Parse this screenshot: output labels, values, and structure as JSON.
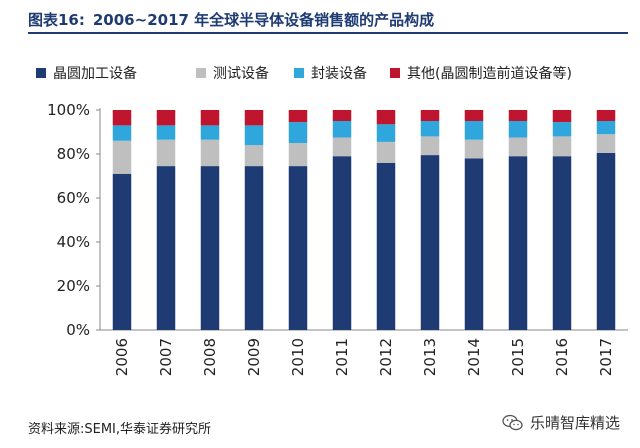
{
  "figure": {
    "label": "图表16:",
    "title": "2006~2017 年全球半导体设备销售额的产品构成",
    "source": "资料来源:SEMI,华泰证券研究所",
    "watermark": "乐晴智库精选"
  },
  "colors": {
    "wafer": "#1f3b73",
    "test": "#bfbfbf",
    "packaging": "#2fa7dd",
    "other": "#c0152f",
    "frame": "#1f3b73"
  },
  "chart_data": {
    "type": "bar",
    "stacked": true,
    "categories": [
      "2006",
      "2007",
      "2008",
      "2009",
      "2010",
      "2011",
      "2012",
      "2013",
      "2014",
      "2015",
      "2016",
      "2017"
    ],
    "series": [
      {
        "name": "晶圆加工设备",
        "color_key": "wafer",
        "values": [
          71,
          74.5,
          74.5,
          74.5,
          74.5,
          79,
          76,
          79.5,
          78,
          79,
          79,
          80.5
        ]
      },
      {
        "name": "测试设备",
        "color_key": "test",
        "values": [
          15,
          12,
          12,
          9.5,
          10.5,
          8.5,
          9.5,
          8.5,
          8.5,
          8.5,
          9,
          8.5
        ]
      },
      {
        "name": "封装设备",
        "color_key": "packaging",
        "values": [
          7,
          6.5,
          6.5,
          9,
          9.5,
          7.5,
          8,
          7,
          8.5,
          7.5,
          6.5,
          6
        ]
      },
      {
        "name": "其他(晶圆制造前道设备等)",
        "color_key": "other",
        "values": [
          7,
          7,
          7,
          7,
          5.5,
          5,
          6.5,
          5,
          5,
          5,
          5.5,
          5
        ]
      }
    ],
    "ylim": [
      0,
      100
    ],
    "y_ticks": [
      "0%",
      "20%",
      "40%",
      "60%",
      "80%",
      "100%"
    ],
    "y_tick_values": [
      0,
      20,
      40,
      60,
      80,
      100
    ],
    "legend_position": "top"
  }
}
